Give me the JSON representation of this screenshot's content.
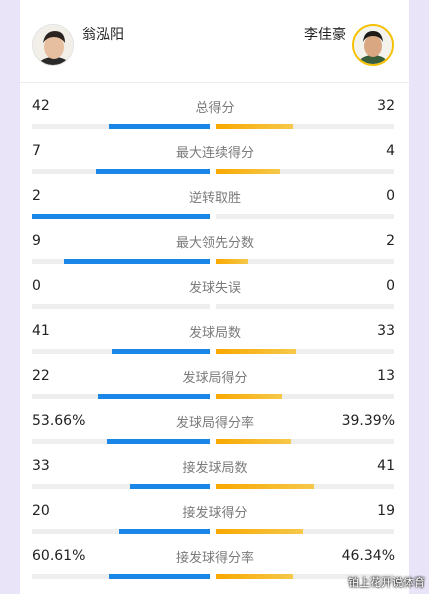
{
  "players": {
    "left": {
      "name": "翁泓阳"
    },
    "right": {
      "name": "李佳豪"
    }
  },
  "colors": {
    "left_bar": "#1a86e8",
    "right_bar": "#f8a800",
    "track": "#eeeeee"
  },
  "stats": [
    {
      "label": "总得分",
      "left": "42",
      "right": "32",
      "left_fill": 0.57,
      "right_fill": 0.43
    },
    {
      "label": "最大连续得分",
      "left": "7",
      "right": "4",
      "left_fill": 0.64,
      "right_fill": 0.36
    },
    {
      "label": "逆转取胜",
      "left": "2",
      "right": "0",
      "left_fill": 1.0,
      "right_fill": 0.0
    },
    {
      "label": "最大领先分数",
      "left": "9",
      "right": "2",
      "left_fill": 0.82,
      "right_fill": 0.18
    },
    {
      "label": "发球失误",
      "left": "0",
      "right": "0",
      "left_fill": 0.0,
      "right_fill": 0.0
    },
    {
      "label": "发球局数",
      "left": "41",
      "right": "33",
      "left_fill": 0.55,
      "right_fill": 0.45
    },
    {
      "label": "发球局得分",
      "left": "22",
      "right": "13",
      "left_fill": 0.63,
      "right_fill": 0.37
    },
    {
      "label": "发球局得分率",
      "left": "53.66%",
      "right": "39.39%",
      "left_fill": 0.58,
      "right_fill": 0.42
    },
    {
      "label": "接发球局数",
      "left": "33",
      "right": "41",
      "left_fill": 0.45,
      "right_fill": 0.55
    },
    {
      "label": "接发球得分",
      "left": "20",
      "right": "19",
      "left_fill": 0.51,
      "right_fill": 0.49
    },
    {
      "label": "接发球得分率",
      "left": "60.61%",
      "right": "46.34%",
      "left_fill": 0.57,
      "right_fill": 0.43
    }
  ],
  "watermark": "铂上花开说体育"
}
